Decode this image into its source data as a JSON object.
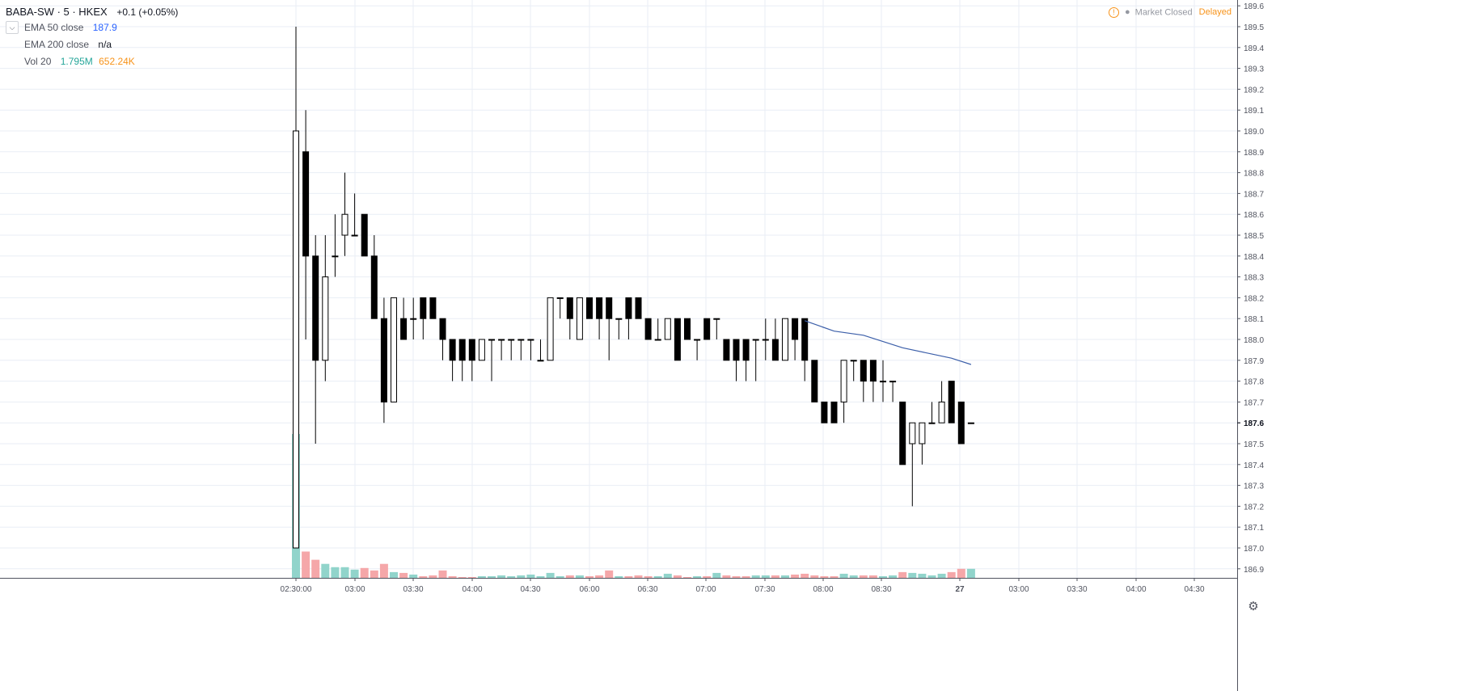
{
  "legend": {
    "symbol": "BABA-SW · 5 · HKEX",
    "change": "+0.1 (+0.05%)",
    "collapse_icon": "chevron-down-icon",
    "ema50_label": "EMA 50 close",
    "ema50_value": "187.9",
    "ema200_label": "EMA 200 close",
    "ema200_value": "n/a",
    "vol_label": "Vol 20",
    "vol_value": "1.795M",
    "vol_ma_value": "652.24K"
  },
  "status": {
    "icon": "warning-icon",
    "market": "Market Closed",
    "delayed": "Delayed"
  },
  "settings_icon": "gear-icon",
  "colors": {
    "up_fill": "#ffffff",
    "down_fill": "#000000",
    "candle_border": "#000000",
    "volume_up": "#91d4cb",
    "volume_down": "#f5a7a9",
    "ema50": "#3c5fa9",
    "ema50_text": "#2962ff",
    "vol_text": "#26a69a",
    "vol_ma_text": "#f7931a",
    "grid": "#e9eef5"
  },
  "chart_data": {
    "type": "candlestick",
    "title": "",
    "x_tick_labels": [
      "02:30:00",
      "03:00",
      "03:30",
      "04:00",
      "04:30",
      "06:00",
      "06:30",
      "07:00",
      "07:30",
      "08:00",
      "08:30",
      "27",
      "03:00",
      "03:30",
      "04:00",
      "04:30"
    ],
    "y_tick_labels": [
      "186.9",
      "187.0",
      "187.1",
      "187.2",
      "187.3",
      "187.4",
      "187.5",
      "187.6",
      "187.7",
      "187.8",
      "187.9",
      "188.0",
      "188.1",
      "188.2",
      "188.3",
      "188.4",
      "188.5",
      "188.6",
      "188.7",
      "188.8",
      "188.9",
      "189.0",
      "189.1",
      "189.2",
      "189.3",
      "189.4",
      "189.5",
      "189.6"
    ],
    "ylim": [
      186.84,
      189.63
    ],
    "last_price": "187.6",
    "grid": true,
    "series": [
      {
        "type": "candlestick",
        "candles": [
          {
            "o": 187.0,
            "h": 189.5,
            "l": 187.0,
            "c": 189.0,
            "v": 1.75
          },
          {
            "o": 188.9,
            "h": 189.1,
            "l": 188.0,
            "c": 188.4,
            "v": 0.32
          },
          {
            "o": 188.4,
            "h": 188.5,
            "l": 187.5,
            "c": 187.9,
            "v": 0.22
          },
          {
            "o": 187.9,
            "h": 188.5,
            "l": 187.8,
            "c": 188.3,
            "v": 0.17
          },
          {
            "o": 188.4,
            "h": 188.6,
            "l": 188.3,
            "c": 188.4,
            "v": 0.13
          },
          {
            "o": 188.5,
            "h": 188.8,
            "l": 188.4,
            "c": 188.6,
            "v": 0.13
          },
          {
            "o": 188.5,
            "h": 188.7,
            "l": 188.5,
            "c": 188.5,
            "v": 0.1
          },
          {
            "o": 188.6,
            "h": 188.6,
            "l": 188.4,
            "c": 188.4,
            "v": 0.12
          },
          {
            "o": 188.4,
            "h": 188.5,
            "l": 188.1,
            "c": 188.1,
            "v": 0.09
          },
          {
            "o": 188.1,
            "h": 188.2,
            "l": 187.6,
            "c": 187.7,
            "v": 0.17
          },
          {
            "o": 187.7,
            "h": 188.2,
            "l": 187.7,
            "c": 188.2,
            "v": 0.07
          },
          {
            "o": 188.1,
            "h": 188.2,
            "l": 188.0,
            "c": 188.0,
            "v": 0.06
          },
          {
            "o": 188.1,
            "h": 188.2,
            "l": 188.0,
            "c": 188.1,
            "v": 0.04
          },
          {
            "o": 188.2,
            "h": 188.2,
            "l": 188.0,
            "c": 188.1,
            "v": 0.02
          },
          {
            "o": 188.2,
            "h": 188.2,
            "l": 188.1,
            "c": 188.1,
            "v": 0.03
          },
          {
            "o": 188.1,
            "h": 188.1,
            "l": 187.9,
            "c": 188.0,
            "v": 0.09
          },
          {
            "o": 188.0,
            "h": 188.0,
            "l": 187.8,
            "c": 187.9,
            "v": 0.02
          },
          {
            "o": 188.0,
            "h": 188.0,
            "l": 187.8,
            "c": 187.9,
            "v": 0.01
          },
          {
            "o": 188.0,
            "h": 188.0,
            "l": 187.8,
            "c": 187.9,
            "v": 0.01
          },
          {
            "o": 187.9,
            "h": 188.0,
            "l": 187.9,
            "c": 188.0,
            "v": 0.02
          },
          {
            "o": 188.0,
            "h": 188.0,
            "l": 187.8,
            "c": 188.0,
            "v": 0.02
          },
          {
            "o": 188.0,
            "h": 188.0,
            "l": 187.9,
            "c": 188.0,
            "v": 0.03
          },
          {
            "o": 188.0,
            "h": 188.0,
            "l": 187.9,
            "c": 188.0,
            "v": 0.02
          },
          {
            "o": 188.0,
            "h": 188.0,
            "l": 187.9,
            "c": 188.0,
            "v": 0.03
          },
          {
            "o": 188.0,
            "h": 188.0,
            "l": 187.9,
            "c": 188.0,
            "v": 0.04
          },
          {
            "o": 187.9,
            "h": 188.0,
            "l": 187.9,
            "c": 187.9,
            "v": 0.02
          },
          {
            "o": 187.9,
            "h": 188.2,
            "l": 187.9,
            "c": 188.2,
            "v": 0.06
          },
          {
            "o": 188.2,
            "h": 188.2,
            "l": 188.1,
            "c": 188.2,
            "v": 0.02
          },
          {
            "o": 188.2,
            "h": 188.2,
            "l": 188.0,
            "c": 188.1,
            "v": 0.03
          },
          {
            "o": 188.0,
            "h": 188.2,
            "l": 188.0,
            "c": 188.2,
            "v": 0.03
          },
          {
            "o": 188.2,
            "h": 188.2,
            "l": 188.1,
            "c": 188.1,
            "v": 0.02
          },
          {
            "o": 188.2,
            "h": 188.2,
            "l": 188.0,
            "c": 188.1,
            "v": 0.03
          },
          {
            "o": 188.2,
            "h": 188.2,
            "l": 187.9,
            "c": 188.1,
            "v": 0.09
          },
          {
            "o": 188.1,
            "h": 188.1,
            "l": 188.0,
            "c": 188.1,
            "v": 0.02
          },
          {
            "o": 188.2,
            "h": 188.2,
            "l": 188.0,
            "c": 188.1,
            "v": 0.02
          },
          {
            "o": 188.2,
            "h": 188.2,
            "l": 188.1,
            "c": 188.1,
            "v": 0.03
          },
          {
            "o": 188.1,
            "h": 188.1,
            "l": 188.0,
            "c": 188.0,
            "v": 0.02
          },
          {
            "o": 188.0,
            "h": 188.1,
            "l": 188.0,
            "c": 188.0,
            "v": 0.02
          },
          {
            "o": 188.0,
            "h": 188.1,
            "l": 188.0,
            "c": 188.1,
            "v": 0.05
          },
          {
            "o": 188.1,
            "h": 188.1,
            "l": 187.9,
            "c": 187.9,
            "v": 0.03
          },
          {
            "o": 188.1,
            "h": 188.1,
            "l": 188.0,
            "c": 188.0,
            "v": 0.01
          },
          {
            "o": 188.0,
            "h": 188.0,
            "l": 187.9,
            "c": 188.0,
            "v": 0.02
          },
          {
            "o": 188.1,
            "h": 188.1,
            "l": 188.0,
            "c": 188.0,
            "v": 0.02
          },
          {
            "o": 188.1,
            "h": 188.1,
            "l": 188.0,
            "c": 188.1,
            "v": 0.06
          },
          {
            "o": 188.0,
            "h": 188.0,
            "l": 187.9,
            "c": 187.9,
            "v": 0.03
          },
          {
            "o": 188.0,
            "h": 188.0,
            "l": 187.8,
            "c": 187.9,
            "v": 0.02
          },
          {
            "o": 188.0,
            "h": 188.0,
            "l": 187.8,
            "c": 187.9,
            "v": 0.02
          },
          {
            "o": 188.0,
            "h": 188.0,
            "l": 187.8,
            "c": 188.0,
            "v": 0.03
          },
          {
            "o": 188.0,
            "h": 188.1,
            "l": 187.9,
            "c": 188.0,
            "v": 0.03
          },
          {
            "o": 188.0,
            "h": 188.1,
            "l": 187.9,
            "c": 187.9,
            "v": 0.03
          },
          {
            "o": 187.9,
            "h": 188.1,
            "l": 187.9,
            "c": 188.1,
            "v": 0.03
          },
          {
            "o": 188.1,
            "h": 188.1,
            "l": 187.9,
            "c": 188.0,
            "v": 0.04
          },
          {
            "o": 188.1,
            "h": 188.1,
            "l": 187.8,
            "c": 187.9,
            "v": 0.05
          },
          {
            "o": 187.9,
            "h": 187.9,
            "l": 187.7,
            "c": 187.7,
            "v": 0.03
          },
          {
            "o": 187.7,
            "h": 187.7,
            "l": 187.6,
            "c": 187.6,
            "v": 0.02
          },
          {
            "o": 187.7,
            "h": 187.7,
            "l": 187.6,
            "c": 187.6,
            "v": 0.02
          },
          {
            "o": 187.7,
            "h": 187.9,
            "l": 187.6,
            "c": 187.9,
            "v": 0.05
          },
          {
            "o": 187.9,
            "h": 187.9,
            "l": 187.8,
            "c": 187.9,
            "v": 0.03
          },
          {
            "o": 187.9,
            "h": 187.9,
            "l": 187.7,
            "c": 187.8,
            "v": 0.03
          },
          {
            "o": 187.9,
            "h": 187.9,
            "l": 187.7,
            "c": 187.8,
            "v": 0.03
          },
          {
            "o": 187.8,
            "h": 187.9,
            "l": 187.7,
            "c": 187.8,
            "v": 0.02
          },
          {
            "o": 187.8,
            "h": 187.8,
            "l": 187.7,
            "c": 187.8,
            "v": 0.03
          },
          {
            "o": 187.7,
            "h": 187.7,
            "l": 187.4,
            "c": 187.4,
            "v": 0.07
          },
          {
            "o": 187.5,
            "h": 187.6,
            "l": 187.2,
            "c": 187.6,
            "v": 0.06
          },
          {
            "o": 187.5,
            "h": 187.6,
            "l": 187.4,
            "c": 187.6,
            "v": 0.05
          },
          {
            "o": 187.6,
            "h": 187.7,
            "l": 187.6,
            "c": 187.6,
            "v": 0.03
          },
          {
            "o": 187.6,
            "h": 187.8,
            "l": 187.6,
            "c": 187.7,
            "v": 0.05
          },
          {
            "o": 187.8,
            "h": 187.8,
            "l": 187.6,
            "c": 187.6,
            "v": 0.07
          },
          {
            "o": 187.7,
            "h": 187.7,
            "l": 187.5,
            "c": 187.5,
            "v": 0.11
          },
          {
            "o": 187.6,
            "h": 187.6,
            "l": 187.6,
            "c": 187.6,
            "v": 0.11
          }
        ]
      },
      {
        "name": "EMA 50 close",
        "type": "line",
        "points": [
          [
            52,
            188.09
          ],
          [
            55,
            188.04
          ],
          [
            58,
            188.02
          ],
          [
            60,
            187.99
          ],
          [
            62,
            187.96
          ],
          [
            65,
            187.93
          ],
          [
            67,
            187.91
          ],
          [
            69,
            187.88
          ]
        ]
      }
    ]
  }
}
